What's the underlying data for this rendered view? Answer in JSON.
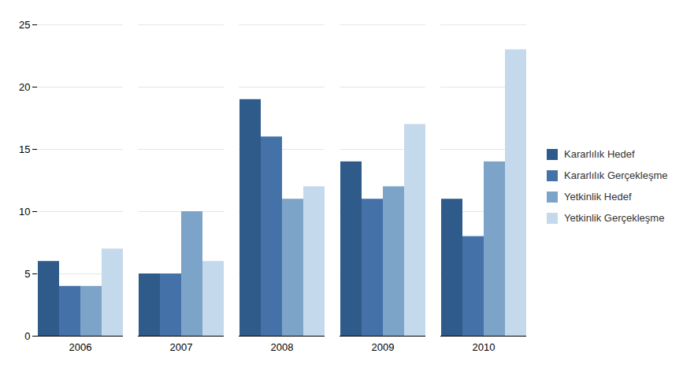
{
  "chart_data": {
    "type": "bar",
    "categories": [
      "2006",
      "2007",
      "2008",
      "2009",
      "2010"
    ],
    "series": [
      {
        "name": "Kararlılık Hedef",
        "color": "#2E5B8A",
        "values": [
          6,
          5,
          19,
          14,
          11
        ]
      },
      {
        "name": "Kararlılık Gerçekleşme",
        "color": "#4472A8",
        "values": [
          4,
          5,
          16,
          11,
          8
        ]
      },
      {
        "name": "Yetkinlik Hedef",
        "color": "#7CA3C8",
        "values": [
          4,
          10,
          11,
          12,
          14
        ]
      },
      {
        "name": "Yetkinlik Gerçekleşme",
        "color": "#C5D9EC",
        "values": [
          7,
          6,
          12,
          17,
          23
        ]
      }
    ],
    "ylim": [
      0,
      25
    ],
    "yticks": [
      0,
      5,
      10,
      15,
      20,
      25
    ],
    "grid": true,
    "legend": "right"
  }
}
